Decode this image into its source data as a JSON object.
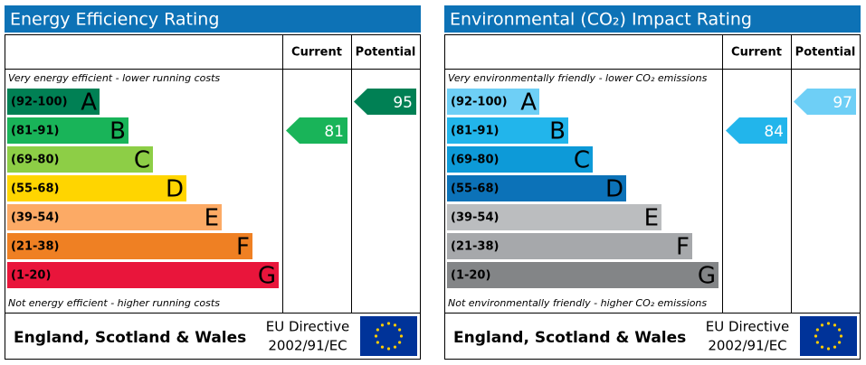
{
  "panels": [
    {
      "title": "Energy Efficiency Rating",
      "columns": [
        "Current",
        "Potential"
      ],
      "top_note": "Very energy efficient - lower running costs",
      "bottom_note": "Not energy efficient - higher running costs",
      "bands": [
        {
          "range": "(92-100)",
          "letter": "A",
          "color": "#008054"
        },
        {
          "range": "(81-91)",
          "letter": "B",
          "color": "#19b459"
        },
        {
          "range": "(69-80)",
          "letter": "C",
          "color": "#8dce46"
        },
        {
          "range": "(55-68)",
          "letter": "D",
          "color": "#ffd500"
        },
        {
          "range": "(39-54)",
          "letter": "E",
          "color": "#fcaa65"
        },
        {
          "range": "(21-38)",
          "letter": "F",
          "color": "#ef8023"
        },
        {
          "range": "(1-20)",
          "letter": "G",
          "color": "#e9153b"
        }
      ],
      "current": 81,
      "potential": 95,
      "footer": {
        "region": "England, Scotland & Wales",
        "directive": [
          "EU Directive",
          "2002/91/EC"
        ]
      }
    },
    {
      "title": "Environmental (CO₂) Impact Rating",
      "columns": [
        "Current",
        "Potential"
      ],
      "top_note": "Very environmentally friendly - lower CO₂ emissions",
      "bottom_note": "Not environmentally friendly - higher CO₂ emissions",
      "bands": [
        {
          "range": "(92-100)",
          "letter": "A",
          "color": "#6ecff6"
        },
        {
          "range": "(81-91)",
          "letter": "B",
          "color": "#22b5eb"
        },
        {
          "range": "(69-80)",
          "letter": "C",
          "color": "#0d9ad8"
        },
        {
          "range": "(55-68)",
          "letter": "D",
          "color": "#0c72b8"
        },
        {
          "range": "(39-54)",
          "letter": "E",
          "color": "#bbbdbf"
        },
        {
          "range": "(21-38)",
          "letter": "F",
          "color": "#a6a8ab"
        },
        {
          "range": "(1-20)",
          "letter": "G",
          "color": "#838587"
        }
      ],
      "current": 84,
      "potential": 97,
      "footer": {
        "region": "England, Scotland & Wales",
        "directive": [
          "EU Directive",
          "2002/91/EC"
        ]
      }
    }
  ]
}
